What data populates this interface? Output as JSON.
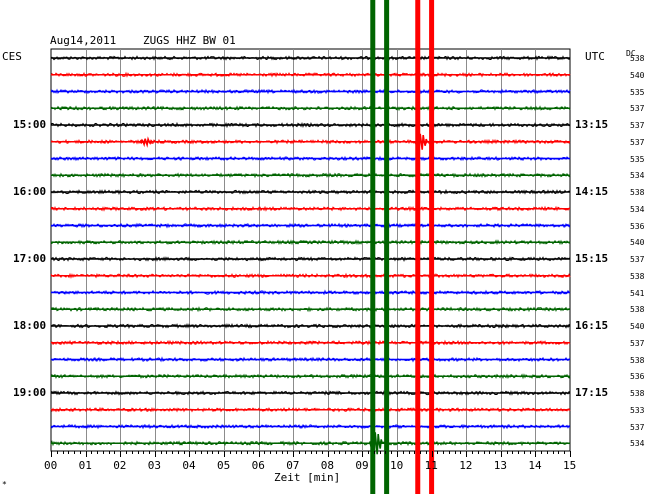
{
  "header": {
    "date": "Aug14,2011",
    "station": "ZUGS HHZ BW 01",
    "left_tz": "CES",
    "right_tz": "UTC",
    "dc_label": "DC"
  },
  "footer": {
    "xlabel": "Zeit [min]",
    "corner_mark": "*"
  },
  "chart_data": {
    "type": "line",
    "title": "Aug14,2011   ZUGS HHZ BW 01",
    "xlabel": "Zeit [min]",
    "x_range": [
      0,
      15
    ],
    "x_ticks": [
      "00",
      "01",
      "02",
      "03",
      "04",
      "05",
      "06",
      "07",
      "08",
      "09",
      "10",
      "11",
      "12",
      "13",
      "14",
      "15"
    ],
    "grid": true,
    "trace_count": 24,
    "trace_interval_min": 15,
    "trace_color_cycle": [
      "#000000",
      "#ff0000",
      "#0000ff",
      "#006400"
    ],
    "left_hour_labels": [
      {
        "trace": 4,
        "label": "15:00"
      },
      {
        "trace": 8,
        "label": "16:00"
      },
      {
        "trace": 12,
        "label": "17:00"
      },
      {
        "trace": 16,
        "label": "18:00"
      },
      {
        "trace": 20,
        "label": "19:00"
      }
    ],
    "right_hour_labels": [
      {
        "trace": 4,
        "label": "13:15"
      },
      {
        "trace": 8,
        "label": "14:15"
      },
      {
        "trace": 12,
        "label": "15:15"
      },
      {
        "trace": 16,
        "label": "16:15"
      },
      {
        "trace": 20,
        "label": "17:15"
      }
    ],
    "dc_offsets": [
      538,
      540,
      535,
      537,
      537,
      537,
      535,
      534,
      538,
      534,
      536,
      540,
      537,
      538,
      541,
      538,
      540,
      537,
      538,
      536,
      538,
      533,
      537,
      534
    ],
    "events": [
      {
        "time_min": 2.75,
        "trace": 5,
        "amplitude": 0.6,
        "color": "#ff0000",
        "kind": "small"
      },
      {
        "time_min": 10.7,
        "trace": 5,
        "amplitude": 1.6,
        "color": "#ff0000",
        "kind": "medium"
      },
      {
        "time_min": 9.4,
        "trace": 23,
        "amplitude": 2.2,
        "color": "#006400",
        "kind": "medium"
      },
      {
        "time_min": 9.3,
        "trace": 0,
        "amplitude": 30,
        "color": "#006400",
        "kind": "clipped_vertical"
      },
      {
        "time_min": 9.7,
        "trace": 0,
        "amplitude": 30,
        "color": "#006400",
        "kind": "clipped_vertical"
      },
      {
        "time_min": 10.6,
        "trace": 0,
        "amplitude": 30,
        "color": "#ff0000",
        "kind": "clipped_vertical"
      },
      {
        "time_min": 11.0,
        "trace": 0,
        "amplitude": 30,
        "color": "#ff0000",
        "kind": "clipped_vertical"
      }
    ]
  }
}
